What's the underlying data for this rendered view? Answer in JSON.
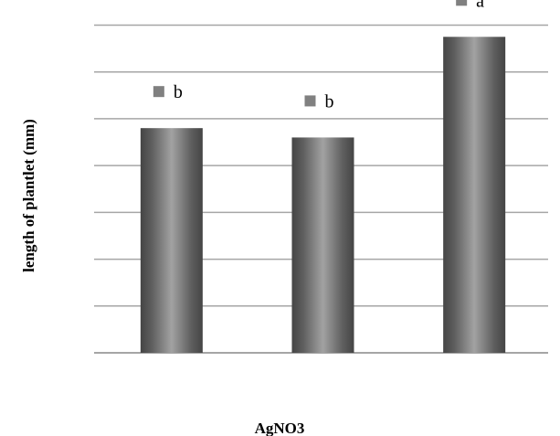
{
  "chart_data": {
    "type": "bar",
    "xlabel": "AgNO3",
    "ylabel": "length of plantlet (mm)",
    "categories": [
      "",
      "",
      ""
    ],
    "values": [
      4.8,
      4.6,
      6.75
    ],
    "significance_letters": [
      "b",
      "b",
      "a"
    ],
    "ylim": [
      0,
      7
    ],
    "y_tick_step": 1,
    "y_tick_labels_shown": false,
    "grid": true,
    "bar_color": "#6f6f6f",
    "marker_color": "#808080",
    "grid_color": "#a6a6a6"
  }
}
